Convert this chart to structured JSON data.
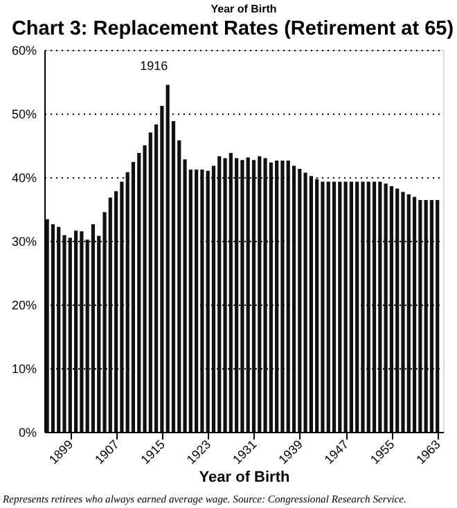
{
  "chart_data": {
    "type": "bar",
    "title": "Chart 3: Replacement Rates (Retirement at 65)",
    "xlabel": "Year of Birth",
    "x": [
      1895,
      1896,
      1897,
      1898,
      1899,
      1900,
      1901,
      1902,
      1903,
      1904,
      1905,
      1906,
      1907,
      1908,
      1909,
      1910,
      1911,
      1912,
      1913,
      1914,
      1915,
      1916,
      1917,
      1918,
      1919,
      1920,
      1921,
      1922,
      1923,
      1924,
      1925,
      1926,
      1927,
      1928,
      1929,
      1930,
      1931,
      1932,
      1933,
      1934,
      1935,
      1936,
      1937,
      1938,
      1939,
      1940,
      1941,
      1942,
      1943,
      1944,
      1945,
      1946,
      1947,
      1948,
      1949,
      1950,
      1951,
      1952,
      1953,
      1954,
      1955,
      1956,
      1957,
      1958,
      1959,
      1960,
      1961,
      1962,
      1963
    ],
    "values": [
      33.4,
      32.6,
      32.2,
      30.9,
      30.5,
      31.6,
      31.5,
      30.2,
      32.6,
      30.8,
      34.5,
      36.8,
      37.8,
      39.3,
      40.8,
      42.4,
      43.8,
      45.0,
      47.0,
      48.3,
      51.2,
      54.5,
      48.8,
      45.8,
      42.8,
      41.2,
      41.2,
      41.2,
      41.0,
      41.8,
      43.3,
      43.0,
      43.8,
      43.0,
      42.7,
      43.1,
      42.7,
      43.3,
      43.0,
      42.3,
      42.6,
      42.6,
      42.6,
      41.8,
      41.3,
      40.7,
      40.2,
      39.7,
      39.3,
      39.3,
      39.3,
      39.3,
      39.3,
      39.3,
      39.3,
      39.3,
      39.3,
      39.3,
      39.3,
      39.0,
      38.6,
      38.2,
      37.7,
      37.3,
      36.9,
      36.4,
      36.4,
      36.4,
      36.4
    ],
    "color": "#111111",
    "xlim": [
      1894.5,
      1964
    ],
    "xticks": [
      1899,
      1907,
      1915,
      1923,
      1931,
      1939,
      1947,
      1955,
      1963
    ],
    "ylim": [
      0,
      60
    ],
    "yticks": [
      {
        "value": 0,
        "label": "0%"
      },
      {
        "value": 10,
        "label": "10%"
      },
      {
        "value": 20,
        "label": "20%"
      },
      {
        "value": 30,
        "label": "30%"
      },
      {
        "value": 40,
        "label": "40%"
      },
      {
        "value": 50,
        "label": "50%"
      },
      {
        "value": 60,
        "label": "60%"
      }
    ],
    "grid": "y",
    "annotations": [
      "Year of Birth",
      {
        "text": "1916",
        "x": 1916,
        "y": 54.5
      },
      "Represents retirees who always earned average wage. Source: Congressional Research Service."
    ]
  }
}
